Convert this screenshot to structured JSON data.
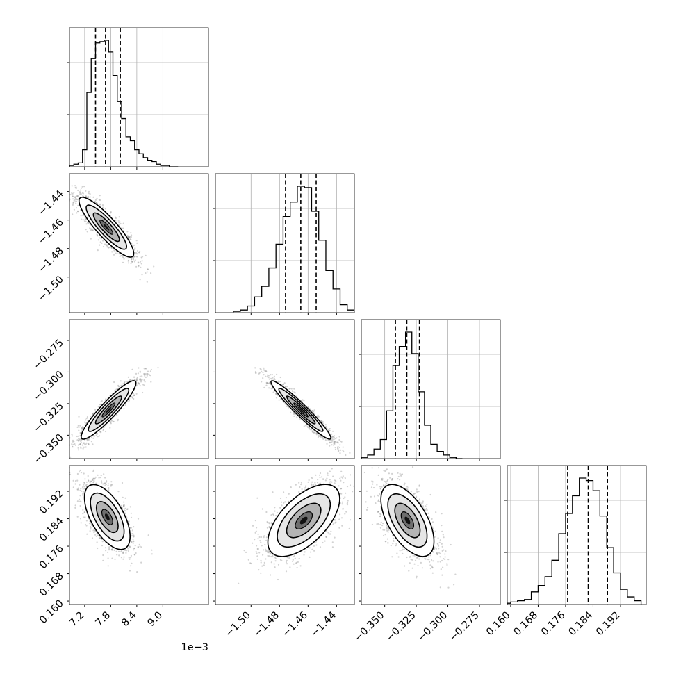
{
  "chart_data": {
    "type": "scatter",
    "kind": "corner-plot",
    "title": "",
    "parameters": [
      {
        "index": 0,
        "range": [
          6.85,
          10.05
        ],
        "scale": "1e-3",
        "ticks": [
          7.2,
          7.8,
          8.4,
          9.0
        ],
        "tick_labels": [
          "7.2",
          "7.8",
          "8.4",
          "9.0"
        ],
        "quantiles": [
          7.45,
          7.68,
          8.02
        ],
        "hist_x": [
          6.9,
          7.0,
          7.1,
          7.2,
          7.3,
          7.4,
          7.5,
          7.6,
          7.7,
          7.8,
          7.9,
          8.0,
          8.1,
          8.2,
          8.3,
          8.4,
          8.5,
          8.6,
          8.7,
          8.8,
          8.9,
          9.0,
          9.1,
          9.2,
          9.3
        ],
        "hist_counts": [
          1,
          2,
          3,
          13,
          57,
          83,
          95,
          96,
          97,
          88,
          70,
          50,
          37,
          23,
          20,
          13,
          10,
          7,
          5,
          4,
          2,
          1,
          1,
          0,
          0
        ]
      },
      {
        "index": 1,
        "range": [
          -1.525,
          -1.4275
        ],
        "ticks": [
          -1.5,
          -1.48,
          -1.46,
          -1.44
        ],
        "tick_labels": [
          "−1.50",
          "−1.48",
          "−1.46",
          "−1.44"
        ],
        "quantiles": [
          -1.4758,
          -1.4651,
          -1.4543
        ],
        "hist_x": [
          -1.51,
          -1.505,
          -1.5,
          -1.495,
          -1.49,
          -1.485,
          -1.48,
          -1.475,
          -1.47,
          -1.465,
          -1.46,
          -1.455,
          -1.45,
          -1.445,
          -1.44,
          -1.435,
          -1.43
        ],
        "hist_counts": [
          1,
          2,
          5,
          12,
          20,
          34,
          52,
          73,
          84,
          96,
          95,
          77,
          55,
          32,
          18,
          6,
          2
        ]
      },
      {
        "index": 2,
        "range": [
          -0.3685,
          -0.2585
        ],
        "ticks": [
          -0.35,
          -0.325,
          -0.3,
          -0.275
        ],
        "tick_labels": [
          "−0.350",
          "−0.325",
          "−0.300",
          "−0.275"
        ],
        "quantiles": [
          -0.3415,
          -0.3325,
          -0.3225
        ],
        "hist_x": [
          -0.366,
          -0.361,
          -0.356,
          -0.351,
          -0.346,
          -0.341,
          -0.336,
          -0.331,
          -0.326,
          -0.321,
          -0.316,
          -0.311,
          -0.306,
          -0.301,
          -0.296,
          -0.291
        ],
        "hist_counts": [
          1,
          3,
          8,
          16,
          40,
          78,
          94,
          106,
          88,
          56,
          28,
          12,
          6,
          3,
          1,
          0
        ]
      },
      {
        "index": 3,
        "range": [
          0.159,
          0.1995
        ],
        "ticks": [
          0.16,
          0.168,
          0.176,
          0.184,
          0.192
        ],
        "tick_labels": [
          "0.160",
          "0.168",
          "0.176",
          "0.184",
          "0.192"
        ],
        "quantiles": [
          0.1766,
          0.1826,
          0.1882
        ],
        "hist_x": [
          0.159,
          0.161,
          0.163,
          0.165,
          0.167,
          0.169,
          0.171,
          0.173,
          0.175,
          0.177,
          0.179,
          0.181,
          0.183,
          0.185,
          0.187,
          0.189,
          0.191,
          0.193,
          0.195,
          0.197
        ],
        "hist_counts": [
          1,
          2,
          3,
          4,
          10,
          15,
          22,
          35,
          56,
          72,
          86,
          100,
          98,
          90,
          70,
          45,
          25,
          12,
          6,
          3
        ]
      }
    ],
    "pairs": [
      {
        "x_param": 0,
        "y_param": 1,
        "center": [
          7.7,
          -1.465
        ],
        "std": [
          0.3,
          0.01
        ],
        "corr": -0.88
      },
      {
        "x_param": 0,
        "y_param": 2,
        "center": [
          7.75,
          -0.33
        ],
        "std": [
          0.3,
          0.011
        ],
        "corr": 0.92
      },
      {
        "x_param": 1,
        "y_param": 2,
        "center": [
          -1.465,
          -0.33
        ],
        "std": [
          0.01,
          0.011
        ],
        "corr": -0.96
      },
      {
        "x_param": 0,
        "y_param": 3,
        "center": [
          7.72,
          0.1845
        ],
        "std": [
          0.25,
          0.0045
        ],
        "corr": -0.6
      },
      {
        "x_param": 1,
        "y_param": 3,
        "center": [
          -1.463,
          0.1835
        ],
        "std": [
          0.012,
          0.005
        ],
        "corr": 0.6
      },
      {
        "x_param": 2,
        "y_param": 3,
        "center": [
          -0.332,
          0.1835
        ],
        "std": [
          0.01,
          0.005
        ],
        "corr": -0.58
      }
    ],
    "x_offset_label": "1e−3",
    "grid": true,
    "legend": "none"
  }
}
